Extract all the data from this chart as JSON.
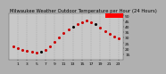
{
  "title": "Milwaukee Weather Outdoor Temperature per Hour (24 Hours)",
  "hours": [
    0,
    1,
    2,
    3,
    4,
    5,
    6,
    7,
    8,
    9,
    10,
    11,
    12,
    13,
    14,
    15,
    16,
    17,
    18,
    19,
    20,
    21,
    22,
    23
  ],
  "temps": [
    22,
    20,
    19,
    18,
    17,
    16,
    17,
    19,
    22,
    26,
    30,
    34,
    37,
    40,
    42,
    44,
    45,
    44,
    42,
    39,
    36,
    33,
    31,
    29
  ],
  "dot_colors": [
    "#cc0000",
    "#cc0000",
    "#cc0000",
    "#cc0000",
    "#cc0000",
    "#cc0000",
    "#000000",
    "#cc0000",
    "#cc0000",
    "#cc0000",
    "#cc0000",
    "#cc0000",
    "#cc0000",
    "#000000",
    "#cc0000",
    "#cc0000",
    "#cc0000",
    "#cc0000",
    "#000000",
    "#cc0000",
    "#cc0000",
    "#cc0000",
    "#cc0000",
    "#cc0000"
  ],
  "y_min": 10,
  "y_max": 52,
  "x_min": -1,
  "x_max": 24,
  "bg_color": "#b0b0b0",
  "plot_bg": "#c8c8c8",
  "dot_color": "#dd0000",
  "highlight_color": "#ff0000",
  "grid_color": "#909090",
  "title_color": "#000000",
  "tick_color": "#000000",
  "title_fontsize": 3.8,
  "tick_fontsize": 3.2,
  "ytick_values": [
    15,
    20,
    25,
    30,
    35,
    40,
    45,
    50
  ],
  "ytick_labels": [
    "15",
    "20",
    "25",
    "30",
    "35",
    "40",
    "45",
    "50"
  ],
  "xtick_positions": [
    1,
    3,
    5,
    7,
    9,
    11,
    13,
    15,
    17,
    19,
    21,
    23
  ],
  "xtick_labels": [
    "1",
    "3",
    "5",
    "7",
    "9",
    "11",
    "13",
    "15",
    "17",
    "19",
    "21",
    "23"
  ],
  "vgrid_positions": [
    1,
    3,
    5,
    7,
    9,
    11,
    13,
    15,
    17,
    19,
    21,
    23
  ],
  "highlight_xmin": 20,
  "highlight_xmax": 24,
  "highlight_ymin": 48,
  "highlight_ymax": 52
}
